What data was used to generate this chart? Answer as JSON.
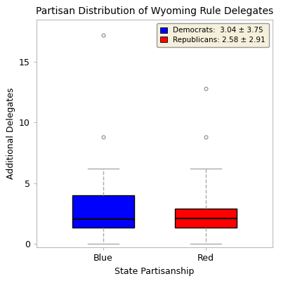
{
  "title": "Partisan Distribution of Wyoming Rule Delegates",
  "xlabel": "State Partisanship",
  "ylabel": "Additional Delegates",
  "categories": [
    "Blue",
    "Red"
  ],
  "box_colors": [
    "blue",
    "red"
  ],
  "blue_box": {
    "q1": 1.3,
    "median": 2.0,
    "q3": 4.0,
    "whisker_low": 0.0,
    "whisker_high": 6.2,
    "fliers": [
      8.8,
      17.2
    ]
  },
  "red_box": {
    "q1": 1.3,
    "median": 2.1,
    "q3": 2.9,
    "whisker_low": 0.0,
    "whisker_high": 6.2,
    "fliers": [
      8.8,
      12.8
    ]
  },
  "legend_labels": [
    "Democrats:  3.04 ± 3.75",
    "Republicans: 2.58 ± 2.91"
  ],
  "legend_colors": [
    "blue",
    "red"
  ],
  "ylim": [
    -0.3,
    18.5
  ],
  "yticks": [
    0,
    5,
    10,
    15
  ],
  "bg_color": "#ffffff",
  "legend_bg": "#f5f0dc",
  "title_fontsize": 10,
  "axis_fontsize": 9,
  "tick_fontsize": 9
}
